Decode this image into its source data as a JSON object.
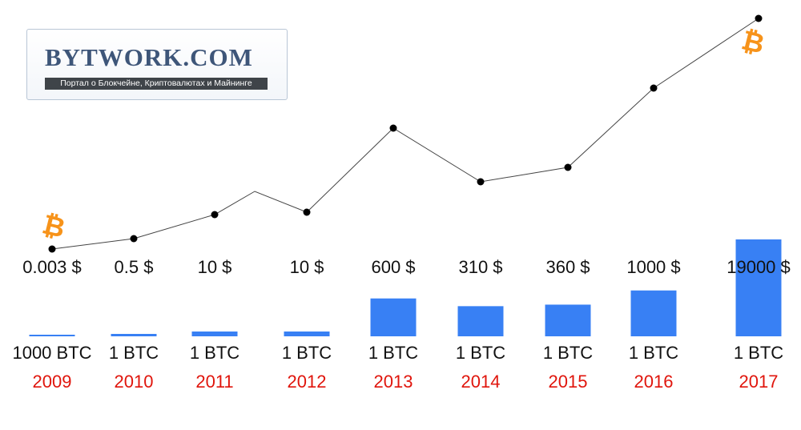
{
  "logo": {
    "title": "BYTWORK.COM",
    "subtitle": "Портал о Блокчейне, Криптовалютах и Майнинге"
  },
  "colors": {
    "bar": "#3880f4",
    "line": "#444444",
    "point": "#000000",
    "year_label": "#e0150c",
    "coin": "#f7931a",
    "text": "#111111"
  },
  "icons": [
    "bitcoin-icon",
    "bitcoin-icon"
  ],
  "chart_data": {
    "type": "bar",
    "title": "",
    "xlabel": "",
    "ylabel": "",
    "categories": [
      "2009",
      "2010",
      "2011",
      "2012",
      "2013",
      "2014",
      "2015",
      "2016",
      "2017"
    ],
    "price_labels": [
      "0.003 $",
      "0.5 $",
      "10 $",
      "10 $",
      "600 $",
      "310 $",
      "360 $",
      "1000 $",
      "19000 $"
    ],
    "amount_labels": [
      "1000 BTC",
      "1 BTC",
      "1 BTC",
      "1 BTC",
      "1 BTC",
      "1 BTC",
      "1 BTC",
      "1 BTC",
      "1 BTC"
    ],
    "series": [
      {
        "type": "bar",
        "values": [
          0.003,
          0.5,
          10,
          10,
          600,
          310,
          360,
          1000,
          19000
        ]
      }
    ],
    "grid": false,
    "legend": "none"
  }
}
